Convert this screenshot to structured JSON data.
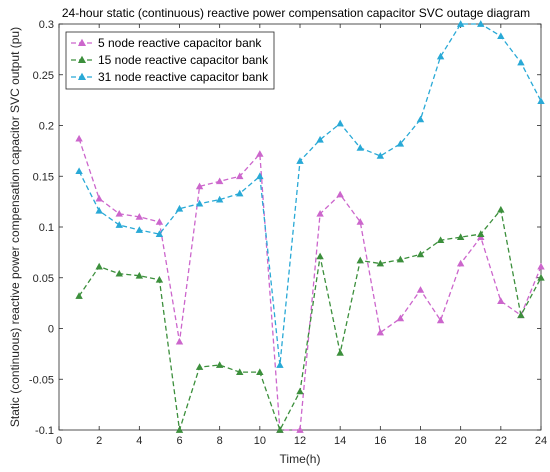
{
  "chart_data": {
    "type": "line",
    "title": "24-hour static (continuous) reactive power compensation capacitor SVC outage diagram",
    "xlabel": "Time(h)",
    "ylabel": "Static (continuous) reactive power compensation capacitor SVC output (pu)",
    "xlim": [
      0,
      24
    ],
    "ylim": [
      -0.1,
      0.3
    ],
    "xticks": [
      0,
      2,
      4,
      6,
      8,
      10,
      12,
      14,
      16,
      18,
      20,
      22,
      24
    ],
    "yticks": [
      -0.1,
      -0.05,
      0,
      0.05,
      0.1,
      0.15,
      0.2,
      0.25,
      0.3
    ],
    "ytick_labels": [
      "-0.1",
      "-0.05",
      "0",
      "0.05",
      "0.1",
      "0.15",
      "0.2",
      "0.25",
      "0.3"
    ],
    "grid": false,
    "legend_position": "top-left",
    "x": [
      1,
      2,
      3,
      4,
      5,
      6,
      7,
      8,
      9,
      10,
      11,
      12,
      13,
      14,
      15,
      16,
      17,
      18,
      19,
      20,
      21,
      22,
      23,
      24
    ],
    "series": [
      {
        "name": "5 node reactive capacitor bank",
        "color": "#cc66cc",
        "marker": "triangle-up",
        "line_style": "dashed",
        "values": [
          0.187,
          0.128,
          0.113,
          0.11,
          0.105,
          -0.013,
          0.14,
          0.145,
          0.15,
          0.172,
          -0.1,
          -0.1,
          0.113,
          0.132,
          0.105,
          -0.004,
          0.01,
          0.038,
          0.008,
          0.064,
          0.09,
          0.027,
          0.013,
          0.061
        ]
      },
      {
        "name": "15 node reactive capacitor bank",
        "color": "#3c8f3c",
        "marker": "triangle-up",
        "line_style": "dashed",
        "values": [
          0.032,
          0.061,
          0.054,
          0.052,
          0.048,
          -0.1,
          -0.038,
          -0.036,
          -0.043,
          -0.043,
          -0.1,
          -0.062,
          0.071,
          -0.024,
          0.067,
          0.064,
          0.068,
          0.073,
          0.087,
          0.09,
          0.093,
          0.117,
          0.013,
          0.05
        ]
      },
      {
        "name": "31 node reactive capacitor bank",
        "color": "#29a9d6",
        "marker": "triangle-up",
        "line_style": "dashed",
        "values": [
          0.155,
          0.116,
          0.102,
          0.097,
          0.093,
          0.118,
          0.123,
          0.127,
          0.133,
          0.15,
          -0.036,
          0.165,
          0.186,
          0.202,
          0.178,
          0.17,
          0.182,
          0.206,
          0.268,
          0.3,
          0.3,
          0.288,
          0.262,
          0.224
        ]
      }
    ]
  }
}
